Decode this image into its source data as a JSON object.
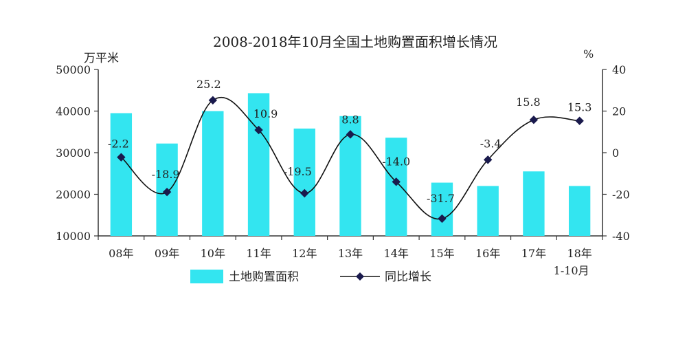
{
  "chart_data": {
    "type": "bar+line",
    "title": "2008-2018年10月全国土地购置面积增长情况",
    "ylabel_left": "万平米",
    "ylabel_right": "%",
    "categories": [
      {
        "line1": "08年",
        "line2": ""
      },
      {
        "line1": "09年",
        "line2": ""
      },
      {
        "line1": "10年",
        "line2": ""
      },
      {
        "line1": "11年",
        "line2": ""
      },
      {
        "line1": "12年",
        "line2": ""
      },
      {
        "line1": "13年",
        "line2": ""
      },
      {
        "line1": "14年",
        "line2": ""
      },
      {
        "line1": "15年",
        "line2": ""
      },
      {
        "line1": "16年",
        "line2": ""
      },
      {
        "line1": "17年",
        "line2": ""
      },
      {
        "line1": "18年",
        "line2": "1-10月"
      }
    ],
    "left_axis": {
      "min": 10000,
      "max": 50000,
      "ticks": [
        "10000",
        "20000",
        "30000",
        "40000",
        "50000"
      ]
    },
    "right_axis": {
      "min": -40,
      "max": 40,
      "ticks": [
        "-40",
        "-20",
        "0",
        "20",
        "40"
      ]
    },
    "series": [
      {
        "name": "土地购置面积",
        "kind": "bar",
        "color": "#33e5f0",
        "values": [
          39500,
          32200,
          40000,
          44300,
          35800,
          38800,
          33600,
          22800,
          22000,
          25500,
          22000
        ]
      },
      {
        "name": "同比增长",
        "kind": "line",
        "color": "#1a1a4d",
        "marker": "diamond",
        "values": [
          -2.2,
          -18.9,
          25.2,
          10.9,
          -19.5,
          8.8,
          -14.0,
          -31.7,
          -3.4,
          15.8,
          15.3
        ],
        "labels": [
          "-2.2",
          "-18.9",
          "25.2",
          "10.9",
          "-19.5",
          "8.8",
          "-14.0",
          "-31.7",
          "-3.4",
          "15.8",
          "15.3"
        ]
      }
    ],
    "legend_position": "bottom"
  }
}
